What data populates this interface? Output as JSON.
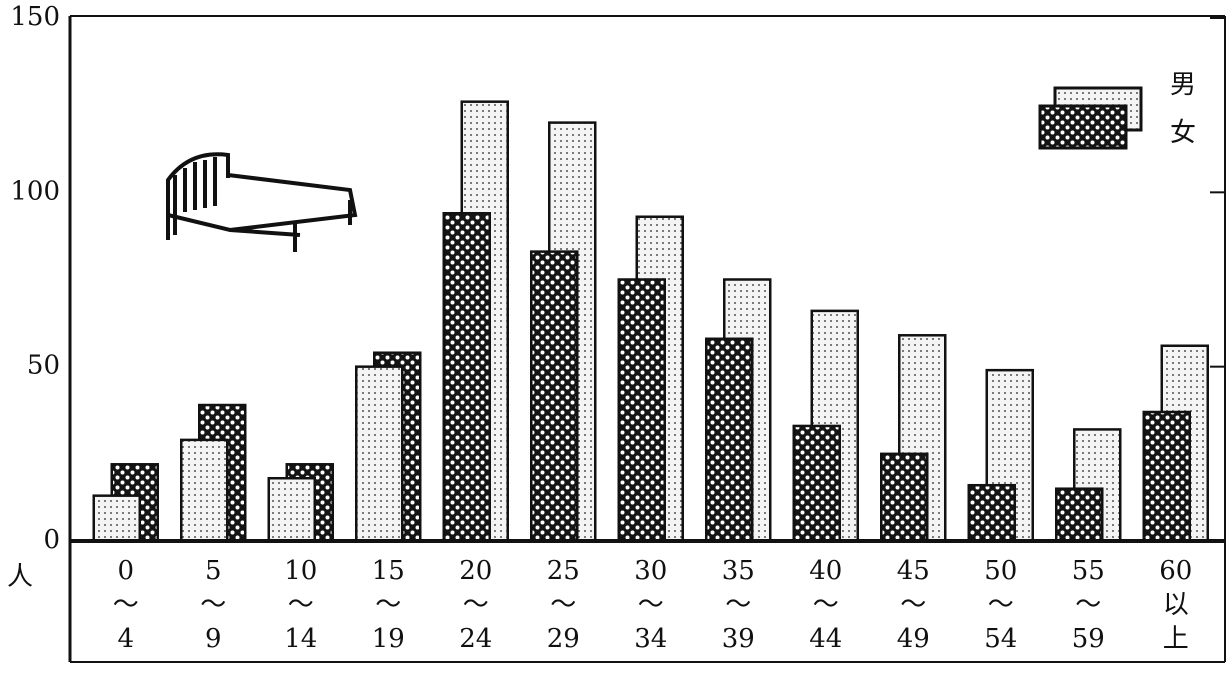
{
  "chart_data": {
    "type": "bar",
    "y_label": "人",
    "categories": [
      [
        "0",
        "〜",
        "4"
      ],
      [
        "5",
        "〜",
        "9"
      ],
      [
        "10",
        "〜",
        "14"
      ],
      [
        "15",
        "〜",
        "19"
      ],
      [
        "20",
        "〜",
        "24"
      ],
      [
        "25",
        "〜",
        "29"
      ],
      [
        "30",
        "〜",
        "34"
      ],
      [
        "35",
        "〜",
        "39"
      ],
      [
        "40",
        "〜",
        "44"
      ],
      [
        "45",
        "〜",
        "49"
      ],
      [
        "50",
        "〜",
        "54"
      ],
      [
        "55",
        "〜",
        "59"
      ],
      [
        "60",
        "以",
        "上"
      ]
    ],
    "series": [
      {
        "name": "男",
        "color": "#f4f4f4",
        "values": [
          13,
          29,
          18,
          50,
          126,
          120,
          93,
          75,
          66,
          59,
          49,
          32,
          56
        ]
      },
      {
        "name": "女",
        "color": "#141414",
        "values": [
          22,
          39,
          22,
          54,
          94,
          83,
          75,
          58,
          33,
          25,
          16,
          15,
          37
        ]
      }
    ],
    "ylim": [
      0,
      150
    ],
    "yticks": [
      0,
      50,
      100,
      150
    ],
    "legend": "top-right"
  }
}
